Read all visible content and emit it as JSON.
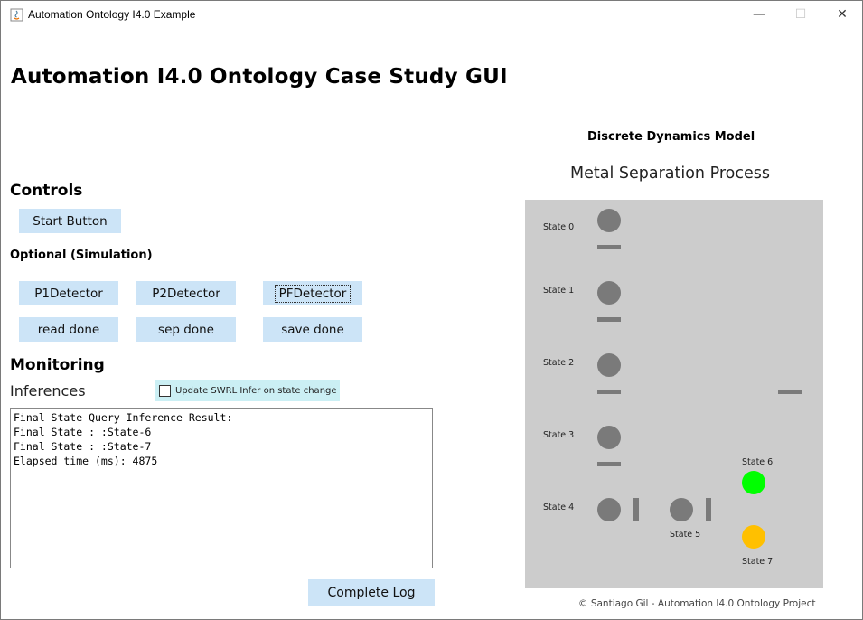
{
  "window": {
    "title": "Automation Ontology I4.0 Example",
    "minimize": "—",
    "maximize": "☐",
    "close": "✕"
  },
  "main_title": "Automation I4.0 Ontology Case Study GUI",
  "controls": {
    "heading": "Controls",
    "start_button": "Start Button",
    "optional_heading": "Optional (Simulation)",
    "buttons": [
      "P1Detector",
      "P2Detector",
      "PFDetector",
      "read done",
      "sep done",
      "save done"
    ]
  },
  "monitoring": {
    "heading": "Monitoring",
    "inferences_label": "Inferences",
    "checkbox_label": "Update SWRL Infer on state change",
    "checkbox_checked": false,
    "log_lines": [
      "Final State Query Inference Result:",
      "Final State : :State-6",
      "Final State : :State-7",
      "Elapsed time (ms): 4875"
    ],
    "complete_log_button": "Complete Log"
  },
  "diagram": {
    "heading": "Discrete Dynamics Model",
    "process_title": "Metal Separation Process",
    "states": [
      "State 0",
      "State 1",
      "State 2",
      "State 3",
      "State 4",
      "State 5",
      "State 6",
      "State 7"
    ],
    "colors": {
      "inactive": "#7a7a7a",
      "state6": "#00ff00",
      "state7": "#ffc000",
      "background": "#cccccc"
    }
  },
  "footer": "© Santiago Gil - Automation I4.0 Ontology Project"
}
